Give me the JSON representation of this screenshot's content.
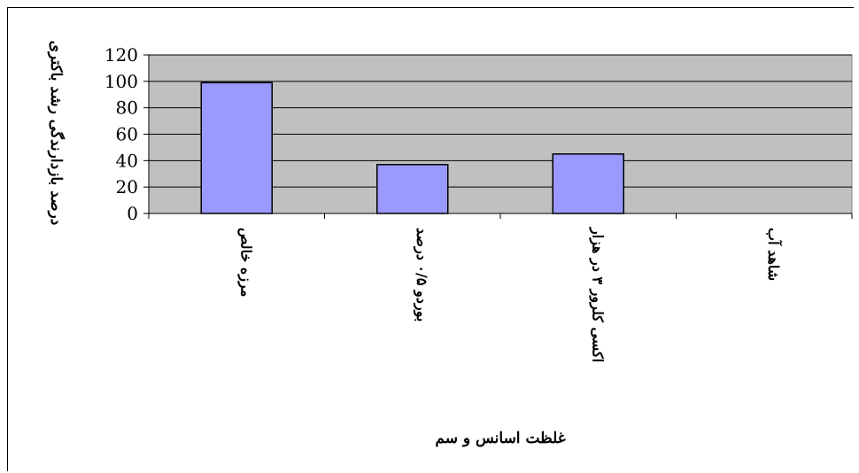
{
  "chart_data": {
    "type": "bar",
    "categories": [
      "مرزه خالص",
      "بوردو ۰/۵ درصد",
      "اکسی کلرور ۳ در هزار",
      "شاهد آب"
    ],
    "values": [
      99,
      37,
      45,
      0
    ],
    "xlabel": "غلظت اسانس و سم",
    "ylabel": "درصد بازدارندگی رشد باکتری",
    "ylim": [
      0,
      120
    ],
    "yticks": [
      0,
      20,
      40,
      60,
      80,
      100,
      120
    ],
    "grid": true,
    "colors": {
      "bar": "#9999ff",
      "plot_area": "#c0c0c0",
      "bar_stroke": "#000000"
    }
  }
}
